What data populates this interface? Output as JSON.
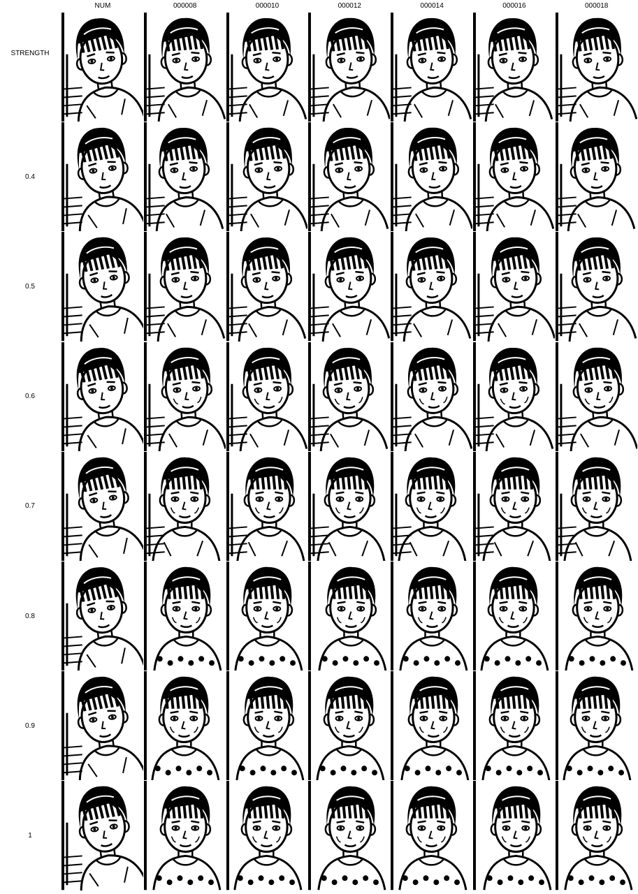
{
  "grid": {
    "corner_label": "NUM",
    "row_axis_label": "STRENGTH",
    "columns": [
      "NUM",
      "000008",
      "000010",
      "000012",
      "000014",
      "000016",
      "000018"
    ],
    "rows": [
      {
        "label": ""
      },
      {
        "label": "0.4"
      },
      {
        "label": "0.5"
      },
      {
        "label": "0.6"
      },
      {
        "label": "0.7"
      },
      {
        "label": "0.8"
      },
      {
        "label": "0.9"
      },
      {
        "label": "1"
      }
    ]
  },
  "colors": {
    "ink": "#000000",
    "paper": "#ffffff"
  }
}
